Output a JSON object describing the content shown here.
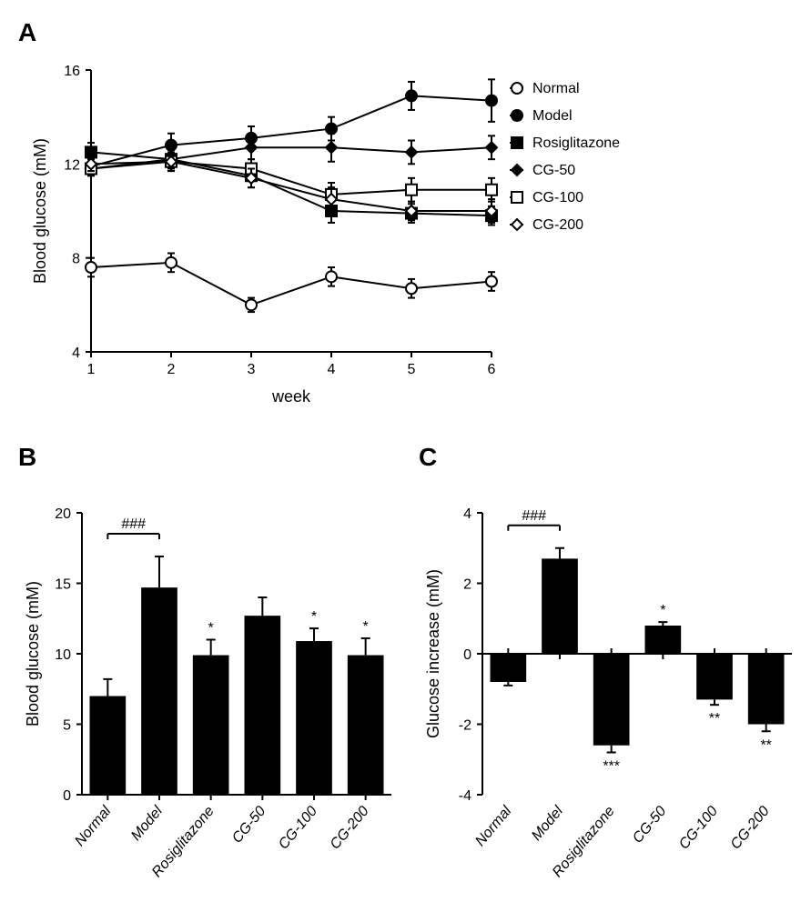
{
  "panelA": {
    "label": "A",
    "ylabel": "Blood glucose (mM)",
    "xlabel": "week",
    "ylim": [
      4,
      16
    ],
    "yticks": [
      4,
      8,
      12,
      16
    ],
    "xlim": [
      1,
      6
    ],
    "xticks": [
      1,
      2,
      3,
      4,
      5,
      6
    ],
    "series": [
      {
        "name": "Normal",
        "marker": "open-circle",
        "values": [
          7.6,
          7.8,
          6.0,
          7.2,
          6.7,
          7.0
        ],
        "errors": [
          0.4,
          0.4,
          0.3,
          0.4,
          0.4,
          0.4
        ]
      },
      {
        "name": "Model",
        "marker": "filled-circle",
        "values": [
          11.9,
          12.8,
          13.1,
          13.5,
          14.9,
          14.7
        ],
        "errors": [
          0.3,
          0.5,
          0.5,
          0.5,
          0.6,
          0.9
        ]
      },
      {
        "name": "Rosiglitazone",
        "marker": "filled-square",
        "values": [
          12.5,
          12.2,
          11.5,
          10.0,
          9.9,
          9.8
        ],
        "errors": [
          0.4,
          0.5,
          0.5,
          0.5,
          0.4,
          0.4
        ]
      },
      {
        "name": "CG-50",
        "marker": "filled-diamond",
        "values": [
          11.8,
          12.2,
          12.7,
          12.7,
          12.5,
          12.7
        ],
        "errors": [
          0.3,
          0.4,
          0.5,
          0.6,
          0.5,
          0.5
        ]
      },
      {
        "name": "CG-100",
        "marker": "open-square",
        "values": [
          11.8,
          12.1,
          11.8,
          10.7,
          10.9,
          10.9
        ],
        "errors": [
          0.3,
          0.4,
          0.4,
          0.5,
          0.5,
          0.5
        ]
      },
      {
        "name": "CG-200",
        "marker": "open-diamond",
        "values": [
          12.0,
          12.1,
          11.4,
          10.5,
          10.0,
          10.0
        ],
        "errors": [
          0.3,
          0.3,
          0.4,
          0.5,
          0.4,
          0.5
        ]
      }
    ]
  },
  "panelB": {
    "label": "B",
    "ylabel": "Blood glucose (mM)",
    "ylim": [
      0,
      20
    ],
    "yticks": [
      0,
      5,
      10,
      15,
      20
    ],
    "categories": [
      "Normal",
      "Model",
      "Rosiglitazone",
      "CG-50",
      "CG-100",
      "CG-200"
    ],
    "values": [
      7.0,
      14.7,
      9.9,
      12.7,
      10.9,
      9.9
    ],
    "errors": [
      1.2,
      2.2,
      1.1,
      1.3,
      0.9,
      1.2
    ],
    "sig": [
      "",
      "###",
      "*",
      "",
      "*",
      "*"
    ],
    "bracket": {
      "from": 0,
      "to": 1,
      "label": "###"
    }
  },
  "panelC": {
    "label": "C",
    "ylabel": "Glucose increase (mM)",
    "ylim": [
      -4,
      4
    ],
    "yticks": [
      -4,
      -2,
      0,
      2,
      4
    ],
    "categories": [
      "Normal",
      "Model",
      "Rosiglitazone",
      "CG-50",
      "CG-100",
      "CG-200"
    ],
    "values": [
      -0.8,
      2.7,
      -2.6,
      0.8,
      -1.3,
      -2.0
    ],
    "errors": [
      0.1,
      0.3,
      0.2,
      0.1,
      0.15,
      0.2
    ],
    "sig": [
      "",
      "###",
      "***",
      "*",
      "**",
      "**"
    ],
    "bracket": {
      "from": 0,
      "to": 1,
      "label": "###"
    }
  }
}
